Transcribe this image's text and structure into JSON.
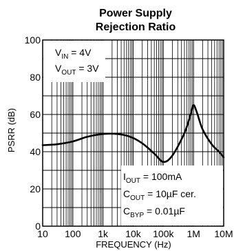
{
  "chart_data": {
    "type": "line",
    "title_lines": [
      "Power Supply",
      "Rejection Ratio"
    ],
    "xlabel": "FREQUENCY (Hz)",
    "ylabel": "PSRR (dB)",
    "x_scale": "log",
    "xlim": [
      10,
      10000000
    ],
    "ylim": [
      0,
      100
    ],
    "x_ticks": [
      {
        "value": 10,
        "label": "10"
      },
      {
        "value": 100,
        "label": "100"
      },
      {
        "value": 1000,
        "label": "1k"
      },
      {
        "value": 10000,
        "label": "10k"
      },
      {
        "value": 100000,
        "label": "100k"
      },
      {
        "value": 1000000,
        "label": "1M"
      },
      {
        "value": 10000000,
        "label": "10M"
      }
    ],
    "y_ticks": [
      0,
      20,
      40,
      60,
      80,
      100
    ],
    "grid": true,
    "series": [
      {
        "color": "#000000",
        "points": [
          [
            10,
            43.5
          ],
          [
            30,
            44
          ],
          [
            100,
            45.5
          ],
          [
            300,
            48
          ],
          [
            1000,
            49.5
          ],
          [
            3000,
            49.5
          ],
          [
            8000,
            48
          ],
          [
            20000,
            44.5
          ],
          [
            50000,
            39
          ],
          [
            100000,
            34.5
          ],
          [
            200000,
            38
          ],
          [
            500000,
            50
          ],
          [
            800000,
            60
          ],
          [
            1000000,
            65
          ],
          [
            1300000,
            61
          ],
          [
            2000000,
            52
          ],
          [
            4000000,
            44
          ],
          [
            7000000,
            40
          ],
          [
            10000000,
            37
          ]
        ]
      }
    ],
    "annotations": {
      "top_left": [
        {
          "main": "V",
          "sub": "IN",
          "rest": " = 4V"
        },
        {
          "main": "V",
          "sub": "OUT",
          "rest": " = 3V"
        }
      ],
      "bottom_right": [
        {
          "main": "I",
          "sub": "OUT",
          "rest": " = 100mA"
        },
        {
          "main": "C",
          "sub": "OUT",
          "rest": " = 10µF cer."
        },
        {
          "main": "C",
          "sub": "BYP",
          "rest": " = 0.01µF"
        }
      ]
    }
  }
}
